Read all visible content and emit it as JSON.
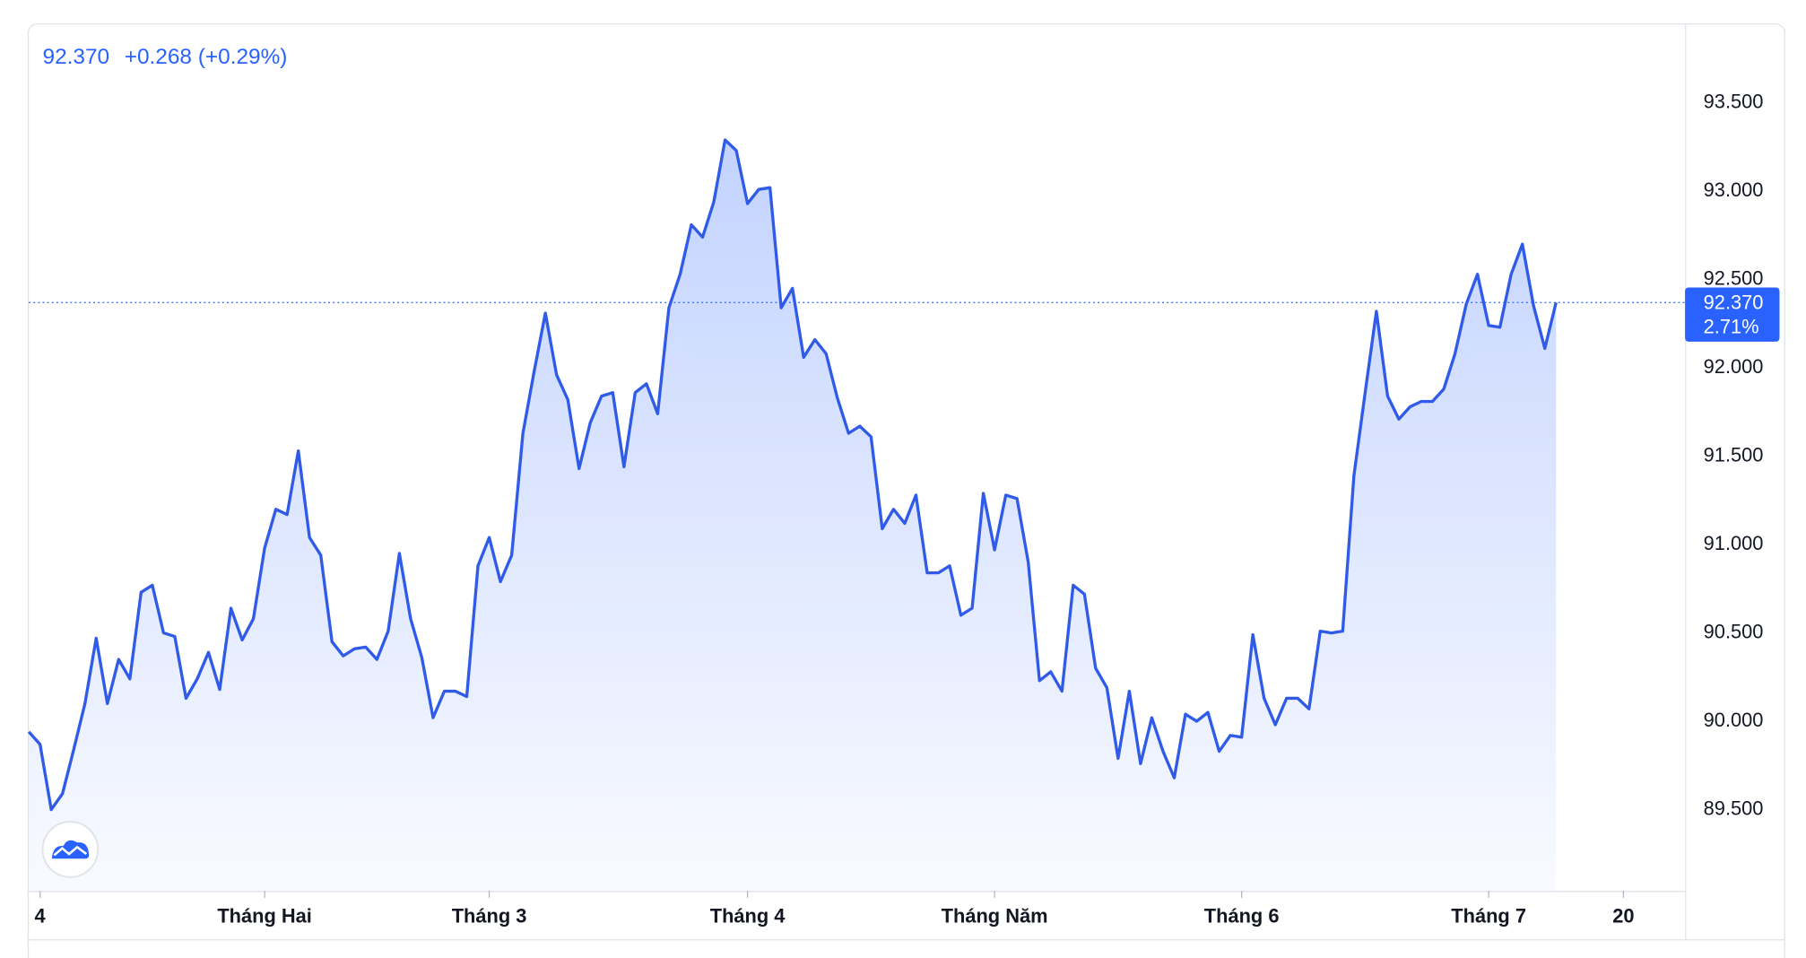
{
  "chart_data": {
    "type": "area",
    "price_label": "92.370",
    "change_label": "+0.268 (+0.29%)",
    "badge_price_label": "92.370",
    "badge_pct_label": "2.71%",
    "color": "#2f5be8",
    "categories": [
      null,
      "4",
      null,
      null,
      null,
      null,
      null,
      null,
      null,
      null,
      null,
      null,
      null,
      null,
      null,
      null,
      null,
      null,
      null,
      null,
      null,
      "Tháng Hai",
      null,
      null,
      null,
      null,
      null,
      null,
      null,
      null,
      null,
      null,
      null,
      null,
      null,
      null,
      null,
      null,
      null,
      null,
      null,
      "Tháng 3",
      null,
      null,
      null,
      null,
      null,
      null,
      null,
      null,
      null,
      null,
      null,
      null,
      null,
      null,
      null,
      null,
      null,
      null,
      null,
      null,
      null,
      null,
      "Tháng 4",
      null,
      null,
      null,
      null,
      null,
      null,
      null,
      null,
      null,
      null,
      null,
      null,
      null,
      null,
      null,
      null,
      null,
      null,
      null,
      null,
      null,
      "Tháng Năm",
      null,
      null,
      null,
      null,
      null,
      null,
      null,
      null,
      null,
      null,
      null,
      null,
      null,
      null,
      null,
      null,
      null,
      null,
      null,
      null,
      null,
      "Tháng 6",
      null,
      null,
      null,
      null,
      null,
      null,
      null,
      null,
      null,
      null,
      null,
      null,
      null,
      null,
      null,
      null,
      null,
      null,
      null,
      null,
      null,
      "Tháng 7",
      null,
      null,
      null,
      null,
      null,
      null,
      null,
      null,
      null,
      null,
      null,
      "20"
    ],
    "values": [
      89.94,
      89.87,
      89.5,
      89.59,
      89.84,
      90.1,
      90.47,
      90.1,
      90.35,
      90.24,
      90.73,
      90.77,
      90.5,
      90.48,
      90.13,
      90.24,
      90.39,
      90.18,
      90.64,
      90.46,
      90.58,
      90.98,
      91.2,
      91.17,
      91.53,
      91.04,
      90.94,
      90.45,
      90.37,
      90.41,
      90.42,
      90.35,
      90.51,
      90.95,
      90.58,
      90.36,
      90.02,
      90.17,
      90.17,
      90.14,
      90.88,
      91.04,
      90.79,
      90.94,
      91.63,
      91.98,
      92.31,
      91.96,
      91.82,
      91.43,
      91.69,
      91.84,
      91.86,
      91.44,
      91.86,
      91.91,
      91.74,
      92.34,
      92.53,
      92.81,
      92.74,
      92.94,
      93.29,
      93.23,
      92.93,
      93.01,
      93.02,
      92.34,
      92.45,
      92.06,
      92.16,
      92.08,
      91.83,
      91.63,
      91.67,
      91.61,
      91.09,
      91.2,
      91.12,
      91.28,
      90.84,
      90.84,
      90.88,
      90.6,
      90.64,
      91.29,
      90.97,
      91.28,
      91.26,
      90.9,
      90.23,
      90.28,
      90.17,
      90.77,
      90.72,
      90.3,
      90.19,
      89.79,
      90.17,
      89.76,
      90.02,
      89.83,
      89.68,
      90.04,
      90.0,
      90.05,
      89.83,
      89.92,
      89.91,
      90.49,
      90.13,
      89.98,
      90.13,
      90.13,
      90.07,
      90.51,
      90.5,
      90.51,
      91.39,
      91.86,
      92.32,
      91.84,
      91.71,
      91.78,
      91.81,
      91.81,
      91.88,
      92.08,
      92.36,
      92.53,
      92.24,
      92.23,
      92.53,
      92.7,
      92.35,
      92.11,
      92.37,
      null,
      null,
      null,
      null,
      null,
      null
    ],
    "ylim": [
      89.04,
      93.95
    ],
    "yticks": [
      {
        "value": 89.5,
        "label": "89.500"
      },
      {
        "value": 90,
        "label": "90.000"
      },
      {
        "value": 90.5,
        "label": "90.500"
      },
      {
        "value": 91,
        "label": "91.000"
      },
      {
        "value": 91.5,
        "label": "91.500"
      },
      {
        "value": 92,
        "label": "92.000"
      },
      {
        "value": 92.5,
        "label": "92.500"
      },
      {
        "value": 93,
        "label": "93.000"
      },
      {
        "value": 93.5,
        "label": "93.500"
      }
    ],
    "grid": false
  }
}
